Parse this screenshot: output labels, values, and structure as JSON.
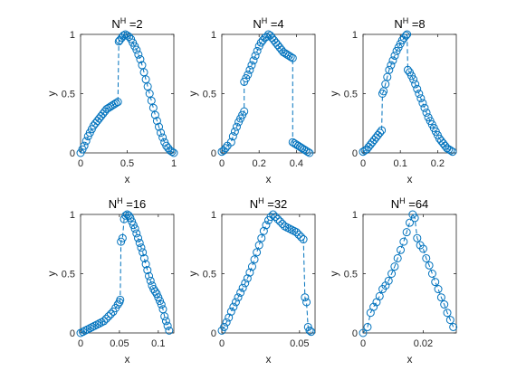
{
  "chart_data": [
    {
      "type": "scatter",
      "title": "N^H =2",
      "title_base": "N",
      "title_sup": "H",
      "title_rest": " =2",
      "xlabel": "x",
      "ylabel": "y",
      "xlim": [
        0,
        1
      ],
      "ylim": [
        0,
        1
      ],
      "xticks": [
        0,
        0.5,
        1
      ],
      "xtick_labels": [
        "0",
        "0.5",
        "1"
      ],
      "yticks": [
        0,
        0.5,
        1
      ],
      "ytick_labels": [
        "0",
        "0.5",
        "1"
      ],
      "series": [
        {
          "x": [
            0.0,
            0.02,
            0.04,
            0.06,
            0.08,
            0.1,
            0.12,
            0.14,
            0.16,
            0.18,
            0.2,
            0.22,
            0.24,
            0.26,
            0.28,
            0.3,
            0.32,
            0.34,
            0.36,
            0.38,
            0.4,
            0.41,
            0.42,
            0.44,
            0.46,
            0.48,
            0.5,
            0.52,
            0.54,
            0.56,
            0.58,
            0.6,
            0.62,
            0.64,
            0.66,
            0.68,
            0.7,
            0.72,
            0.74,
            0.76,
            0.78,
            0.8,
            0.82,
            0.84,
            0.86,
            0.88,
            0.9,
            0.92,
            0.94,
            0.96,
            0.98,
            1.0
          ],
          "y": [
            0.0,
            0.03,
            0.06,
            0.1,
            0.14,
            0.17,
            0.2,
            0.23,
            0.25,
            0.27,
            0.29,
            0.31,
            0.33,
            0.35,
            0.37,
            0.38,
            0.39,
            0.4,
            0.41,
            0.42,
            0.43,
            0.94,
            0.95,
            0.97,
            0.99,
            1.0,
            0.99,
            0.98,
            0.96,
            0.93,
            0.9,
            0.87,
            0.83,
            0.79,
            0.74,
            0.68,
            0.62,
            0.56,
            0.5,
            0.44,
            0.38,
            0.32,
            0.27,
            0.22,
            0.17,
            0.13,
            0.09,
            0.06,
            0.04,
            0.02,
            0.01,
            0.0
          ]
        }
      ]
    },
    {
      "type": "scatter",
      "title": "N^H =4",
      "title_base": "N",
      "title_sup": "H",
      "title_rest": " =4",
      "xlabel": "x",
      "ylabel": "y",
      "xlim": [
        0,
        0.5
      ],
      "ylim": [
        0,
        1
      ],
      "xticks": [
        0,
        0.2,
        0.4
      ],
      "xtick_labels": [
        "0",
        "0.2",
        "0.4"
      ],
      "yticks": [
        0,
        0.5,
        1
      ],
      "ytick_labels": [
        "0",
        "0.5",
        "1"
      ],
      "series": [
        {
          "x": [
            0.0,
            0.01,
            0.02,
            0.03,
            0.05,
            0.06,
            0.07,
            0.08,
            0.09,
            0.1,
            0.11,
            0.12,
            0.12,
            0.13,
            0.14,
            0.15,
            0.16,
            0.17,
            0.18,
            0.19,
            0.2,
            0.21,
            0.22,
            0.23,
            0.24,
            0.25,
            0.26,
            0.27,
            0.28,
            0.29,
            0.3,
            0.31,
            0.32,
            0.33,
            0.34,
            0.35,
            0.36,
            0.37,
            0.38,
            0.38,
            0.39,
            0.4,
            0.41,
            0.42,
            0.43,
            0.44,
            0.45,
            0.46,
            0.47
          ],
          "y": [
            0.01,
            0.02,
            0.04,
            0.06,
            0.09,
            0.14,
            0.18,
            0.22,
            0.26,
            0.29,
            0.32,
            0.35,
            0.6,
            0.63,
            0.66,
            0.7,
            0.74,
            0.78,
            0.82,
            0.86,
            0.9,
            0.93,
            0.95,
            0.97,
            0.98,
            1.0,
            0.99,
            0.97,
            0.95,
            0.93,
            0.91,
            0.89,
            0.87,
            0.85,
            0.84,
            0.83,
            0.82,
            0.81,
            0.8,
            0.09,
            0.08,
            0.07,
            0.06,
            0.05,
            0.04,
            0.03,
            0.02,
            0.01,
            0.0
          ]
        }
      ]
    },
    {
      "type": "scatter",
      "title": "N^H =8",
      "title_base": "N",
      "title_sup": "H",
      "title_rest": " =8",
      "xlabel": "x",
      "ylabel": "y",
      "xlim": [
        0,
        0.25
      ],
      "ylim": [
        0,
        1
      ],
      "xticks": [
        0,
        0.1,
        0.2
      ],
      "xtick_labels": [
        "0",
        "0.1",
        "0.2"
      ],
      "yticks": [
        0,
        0.5,
        1
      ],
      "ytick_labels": [
        "0",
        "0.5",
        "1"
      ],
      "series": [
        {
          "x": [
            0.0,
            0.005,
            0.01,
            0.015,
            0.02,
            0.025,
            0.03,
            0.035,
            0.04,
            0.045,
            0.05,
            0.052,
            0.055,
            0.06,
            0.065,
            0.07,
            0.075,
            0.08,
            0.085,
            0.09,
            0.095,
            0.1,
            0.105,
            0.11,
            0.115,
            0.118,
            0.12,
            0.125,
            0.13,
            0.135,
            0.14,
            0.145,
            0.15,
            0.155,
            0.16,
            0.165,
            0.17,
            0.175,
            0.18,
            0.185,
            0.19,
            0.195,
            0.2,
            0.205,
            0.21,
            0.215,
            0.22,
            0.225,
            0.23,
            0.235,
            0.24
          ],
          "y": [
            0.01,
            0.02,
            0.03,
            0.05,
            0.07,
            0.09,
            0.11,
            0.13,
            0.15,
            0.17,
            0.19,
            0.5,
            0.52,
            0.58,
            0.64,
            0.7,
            0.74,
            0.78,
            0.82,
            0.86,
            0.89,
            0.92,
            0.95,
            0.97,
            0.99,
            1.0,
            0.7,
            0.68,
            0.65,
            0.62,
            0.58,
            0.54,
            0.5,
            0.46,
            0.42,
            0.38,
            0.34,
            0.3,
            0.27,
            0.24,
            0.21,
            0.18,
            0.15,
            0.12,
            0.1,
            0.08,
            0.06,
            0.04,
            0.03,
            0.02,
            0.01
          ]
        }
      ]
    },
    {
      "type": "scatter",
      "title": "N^H =16",
      "title_base": "N",
      "title_sup": "H",
      "title_rest": " =16",
      "xlabel": "x",
      "ylabel": "y",
      "xlim": [
        0,
        0.12
      ],
      "ylim": [
        0,
        1
      ],
      "xticks": [
        0,
        0.05,
        0.1
      ],
      "xtick_labels": [
        "0",
        "0.05",
        "0.1"
      ],
      "yticks": [
        0,
        0.5,
        1
      ],
      "ytick_labels": [
        "0",
        "0.5",
        "1"
      ],
      "series": [
        {
          "x": [
            0.0,
            0.003,
            0.006,
            0.009,
            0.012,
            0.015,
            0.018,
            0.021,
            0.024,
            0.027,
            0.03,
            0.033,
            0.036,
            0.039,
            0.042,
            0.045,
            0.048,
            0.05,
            0.051,
            0.052,
            0.054,
            0.056,
            0.058,
            0.06,
            0.062,
            0.064,
            0.066,
            0.068,
            0.07,
            0.072,
            0.074,
            0.076,
            0.078,
            0.08,
            0.082,
            0.084,
            0.086,
            0.088,
            0.09,
            0.092,
            0.094,
            0.096,
            0.098,
            0.1,
            0.102,
            0.104,
            0.106,
            0.108,
            0.11,
            0.112,
            0.114
          ],
          "y": [
            0.0,
            0.01,
            0.02,
            0.03,
            0.04,
            0.05,
            0.06,
            0.07,
            0.08,
            0.09,
            0.1,
            0.12,
            0.14,
            0.16,
            0.18,
            0.21,
            0.24,
            0.26,
            0.28,
            0.77,
            0.8,
            0.96,
            0.99,
            1.0,
            0.99,
            0.97,
            0.94,
            0.91,
            0.88,
            0.84,
            0.8,
            0.76,
            0.72,
            0.68,
            0.63,
            0.58,
            0.53,
            0.48,
            0.44,
            0.4,
            0.37,
            0.35,
            0.33,
            0.3,
            0.27,
            0.24,
            0.2,
            0.14,
            0.1,
            0.06,
            0.02
          ]
        }
      ]
    },
    {
      "type": "scatter",
      "title": "N^H =32",
      "title_base": "N",
      "title_sup": "H",
      "title_rest": " =32",
      "xlabel": "x",
      "ylabel": "y",
      "xlim": [
        0,
        0.06
      ],
      "ylim": [
        0,
        1
      ],
      "xticks": [
        0,
        0.05
      ],
      "xtick_labels": [
        "0",
        "0.05"
      ],
      "yticks": [
        0,
        0.5,
        1
      ],
      "ytick_labels": [
        "0",
        "0.5",
        "1"
      ],
      "series": [
        {
          "x": [
            0.0,
            0.0015,
            0.003,
            0.0045,
            0.006,
            0.0075,
            0.009,
            0.0105,
            0.012,
            0.0135,
            0.015,
            0.0165,
            0.018,
            0.0195,
            0.021,
            0.0225,
            0.024,
            0.0255,
            0.027,
            0.0285,
            0.03,
            0.0315,
            0.033,
            0.0345,
            0.036,
            0.0375,
            0.039,
            0.0405,
            0.042,
            0.0435,
            0.045,
            0.0465,
            0.048,
            0.0495,
            0.051,
            0.0525,
            0.0535,
            0.0545,
            0.0555,
            0.0565,
            0.0575
          ],
          "y": [
            0.02,
            0.05,
            0.09,
            0.13,
            0.18,
            0.22,
            0.26,
            0.3,
            0.34,
            0.38,
            0.42,
            0.46,
            0.51,
            0.56,
            0.62,
            0.68,
            0.74,
            0.8,
            0.86,
            0.91,
            0.95,
            0.98,
            1.0,
            0.98,
            0.96,
            0.94,
            0.92,
            0.9,
            0.89,
            0.88,
            0.87,
            0.86,
            0.85,
            0.83,
            0.81,
            0.79,
            0.3,
            0.26,
            0.05,
            0.02,
            0.01
          ]
        }
      ]
    },
    {
      "type": "scatter",
      "title": "N^H =64",
      "title_base": "N",
      "title_sup": "H",
      "title_rest": " =64",
      "xlabel": "x",
      "ylabel": "y",
      "xlim": [
        0,
        0.031
      ],
      "ylim": [
        0,
        1
      ],
      "xticks": [
        0,
        0.02
      ],
      "xtick_labels": [
        "0",
        "0.02"
      ],
      "yticks": [
        0,
        0.5,
        1
      ],
      "ytick_labels": [
        "0",
        "0.5",
        "1"
      ],
      "series": [
        {
          "x": [
            0.0,
            0.0015,
            0.0025,
            0.0035,
            0.0045,
            0.0055,
            0.0065,
            0.0075,
            0.0085,
            0.0095,
            0.0105,
            0.0115,
            0.0125,
            0.0135,
            0.0145,
            0.0155,
            0.0165,
            0.0172,
            0.018,
            0.019,
            0.02,
            0.021,
            0.022,
            0.023,
            0.024,
            0.025,
            0.026,
            0.027,
            0.028,
            0.029,
            0.03
          ],
          "y": [
            0.0,
            0.05,
            0.17,
            0.22,
            0.26,
            0.31,
            0.37,
            0.4,
            0.44,
            0.5,
            0.56,
            0.63,
            0.7,
            0.77,
            0.85,
            0.93,
            1.0,
            0.97,
            0.8,
            0.74,
            0.71,
            0.63,
            0.57,
            0.5,
            0.43,
            0.37,
            0.3,
            0.24,
            0.17,
            0.11,
            0.05
          ]
        }
      ]
    }
  ],
  "colors": {
    "series": "#0072BD",
    "axis": "#262626",
    "background": "#ffffff"
  }
}
